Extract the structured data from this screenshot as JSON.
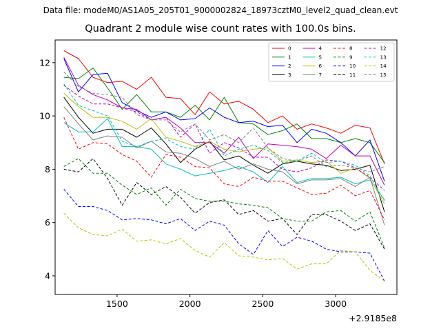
{
  "figure": {
    "suptitle": "Data file: modeM0/AS1A05_205T01_9000002824_18973cztM0_level2_quad_clean.evt"
  },
  "chart_data": {
    "type": "line",
    "title": "Quadrant 2 module wise count rates with 100.0s bins.",
    "xlabel": "",
    "ylabel": "",
    "x_offset_label": "+2.9185e8",
    "xlim": [
      1075,
      3420
    ],
    "ylim": [
      3.3,
      12.85
    ],
    "xticks": [
      1500,
      2000,
      2500,
      3000
    ],
    "yticks": [
      4,
      6,
      8,
      10,
      12
    ],
    "legend_location": "upper right",
    "legend_columns": 4,
    "x": [
      1135,
      1235,
      1335,
      1435,
      1535,
      1635,
      1735,
      1835,
      1935,
      2035,
      2135,
      2235,
      2335,
      2435,
      2535,
      2635,
      2735,
      2835,
      2935,
      3035,
      3135,
      3235,
      3335
    ],
    "series": [
      {
        "name": "0",
        "color": "#ff0000",
        "dash": "solid",
        "values": [
          12.45,
          12.15,
          11.45,
          11.25,
          11.3,
          11.0,
          11.45,
          10.7,
          10.65,
          10.05,
          10.9,
          10.45,
          10.55,
          10.25,
          9.75,
          10.0,
          9.5,
          9.7,
          9.55,
          9.35,
          9.65,
          9.55,
          8.2
        ]
      },
      {
        "name": "1",
        "color": "#008000",
        "dash": "solid",
        "values": [
          11.45,
          11.4,
          11.8,
          11.05,
          10.25,
          10.8,
          10.15,
          10.15,
          9.95,
          10.4,
          9.85,
          10.7,
          9.75,
          9.7,
          9.3,
          9.45,
          9.7,
          9.15,
          9.15,
          9.0,
          9.15,
          9.0,
          8.25
        ]
      },
      {
        "name": "2",
        "color": "#0000ff",
        "dash": "solid",
        "values": [
          12.15,
          10.9,
          11.55,
          11.6,
          10.5,
          10.2,
          9.95,
          10.15,
          9.85,
          9.9,
          10.3,
          9.95,
          9.75,
          9.8,
          9.6,
          9.65,
          9.0,
          9.5,
          9.35,
          9.0,
          8.5,
          9.1,
          7.55
        ]
      },
      {
        "name": "3",
        "color": "#000000",
        "dash": "solid",
        "values": [
          10.7,
          9.95,
          9.35,
          9.5,
          9.5,
          9.2,
          9.55,
          8.95,
          8.25,
          8.75,
          9.05,
          8.35,
          8.5,
          8.15,
          7.85,
          8.2,
          8.3,
          8.2,
          8.15,
          7.95,
          8.0,
          8.15,
          6.4
        ]
      },
      {
        "name": "4",
        "color": "#bf00bf",
        "dash": "solid",
        "values": [
          12.2,
          11.15,
          10.8,
          10.6,
          10.3,
          10.25,
          9.85,
          9.95,
          9.55,
          9.0,
          9.0,
          8.6,
          9.2,
          8.4,
          8.95,
          8.9,
          8.85,
          8.75,
          8.4,
          8.9,
          8.5,
          8.5,
          7.4
        ]
      },
      {
        "name": "5",
        "color": "#00bfbf",
        "dash": "solid",
        "values": [
          9.75,
          9.4,
          9.4,
          9.9,
          8.85,
          8.85,
          8.75,
          8.2,
          8.0,
          7.75,
          7.85,
          7.95,
          8.1,
          7.9,
          7.5,
          8.1,
          7.5,
          7.65,
          7.65,
          7.7,
          7.45,
          7.6,
          6.85
        ]
      },
      {
        "name": "6",
        "color": "#bfbf00",
        "dash": "solid",
        "values": [
          10.85,
          10.35,
          9.95,
          9.95,
          9.8,
          9.5,
          9.9,
          9.2,
          9.05,
          8.85,
          9.05,
          8.75,
          8.65,
          8.75,
          8.8,
          8.3,
          8.35,
          8.25,
          8.3,
          7.85,
          8.05,
          7.65,
          6.7
        ]
      },
      {
        "name": "7",
        "color": "#808080",
        "dash": "solid",
        "values": [
          10.35,
          9.7,
          9.1,
          9.25,
          9.2,
          8.8,
          9.05,
          8.65,
          8.6,
          8.4,
          8.1,
          8.3,
          8.0,
          8.2,
          8.0,
          7.9,
          7.45,
          7.6,
          7.6,
          7.65,
          7.35,
          7.7,
          5.9
        ]
      },
      {
        "name": "8",
        "color": "#ff0000",
        "dash": "dashed",
        "values": [
          9.95,
          8.75,
          9.0,
          8.95,
          8.55,
          8.3,
          7.7,
          8.55,
          8.45,
          8.1,
          8.05,
          7.45,
          7.35,
          7.7,
          7.55,
          7.55,
          7.3,
          7.05,
          7.1,
          7.4,
          7.0,
          7.2,
          6.1
        ]
      },
      {
        "name": "9",
        "color": "#008000",
        "dash": "dashed",
        "values": [
          8.1,
          8.4,
          7.85,
          7.85,
          7.4,
          7.05,
          7.3,
          6.65,
          7.25,
          6.9,
          6.8,
          6.8,
          6.7,
          6.65,
          6.55,
          6.15,
          6.05,
          6.05,
          6.4,
          6.45,
          6.05,
          6.4,
          5.05
        ]
      },
      {
        "name": "10",
        "color": "#0000ff",
        "dash": "dashed",
        "values": [
          7.25,
          6.6,
          6.6,
          6.45,
          6.1,
          6.15,
          6.1,
          5.95,
          6.15,
          5.7,
          6.05,
          5.9,
          5.2,
          4.8,
          5.7,
          5.1,
          5.45,
          5.3,
          5.0,
          4.9,
          4.9,
          4.85,
          3.8
        ]
      },
      {
        "name": "11",
        "color": "#000000",
        "dash": "dashed",
        "values": [
          8.0,
          7.9,
          8.4,
          7.65,
          6.65,
          7.5,
          7.05,
          7.35,
          6.95,
          6.35,
          6.75,
          6.85,
          6.3,
          6.45,
          6.05,
          6.15,
          5.55,
          6.3,
          6.3,
          6.05,
          5.7,
          5.95,
          5.0
        ]
      },
      {
        "name": "12",
        "color": "#bf00bf",
        "dash": "dashed",
        "values": [
          11.15,
          10.75,
          10.45,
          10.45,
          10.3,
          10.15,
          9.85,
          9.95,
          9.2,
          9.7,
          8.6,
          9.0,
          8.8,
          8.45,
          8.45,
          8.0,
          7.9,
          8.05,
          8.35,
          8.3,
          8.05,
          7.7,
          7.2
        ]
      },
      {
        "name": "13",
        "color": "#00bfbf",
        "dash": "dashed",
        "values": [
          11.2,
          10.4,
          10.2,
          10.0,
          9.05,
          8.85,
          9.05,
          9.15,
          8.85,
          8.75,
          9.5,
          8.5,
          8.75,
          8.9,
          8.7,
          8.25,
          8.3,
          8.6,
          8.25,
          8.3,
          8.15,
          7.75,
          6.8
        ]
      },
      {
        "name": "14",
        "color": "#bfbf00",
        "dash": "dashed",
        "values": [
          6.35,
          5.8,
          5.55,
          5.5,
          5.75,
          5.3,
          5.35,
          5.2,
          5.4,
          4.95,
          4.7,
          5.25,
          4.75,
          4.7,
          4.6,
          4.65,
          4.25,
          4.45,
          4.45,
          4.95,
          4.9,
          4.2,
          3.8
        ]
      },
      {
        "name": "15",
        "color": "#808080",
        "dash": "dashed",
        "values": [
          11.65,
          11.1,
          10.85,
          10.8,
          10.7,
          10.05,
          9.85,
          9.85,
          9.4,
          9.7,
          9.1,
          9.3,
          9.0,
          9.55,
          8.8,
          8.4,
          8.3,
          8.5,
          8.1,
          8.15,
          8.05,
          7.9,
          8.1
        ]
      }
    ]
  }
}
